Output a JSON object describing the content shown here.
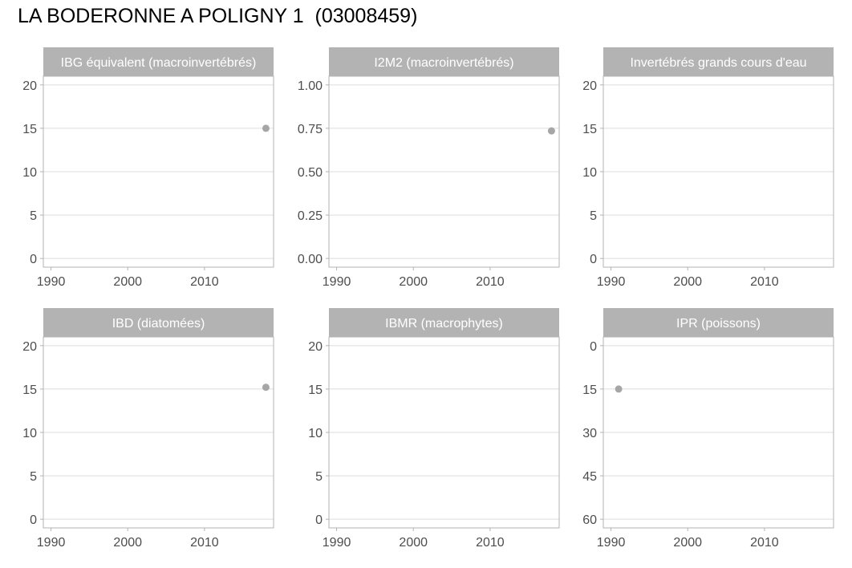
{
  "title": "LA BODERONNE A POLIGNY 1  (03008459)",
  "colors": {
    "strip_background": "#b3b3b3",
    "strip_text": "#ffffff",
    "panel_border": "#b3b3b3",
    "grid": "#dedede",
    "point": "#a6a6a6",
    "tick_text": "#4d4d4d"
  },
  "chart_data": [
    {
      "type": "scatter",
      "title": "IBG équivalent (macroinvertébrés)",
      "xlim": [
        1989,
        2019
      ],
      "ylim": [
        -1,
        21
      ],
      "y_reversed": false,
      "x_ticks": [
        1990,
        2000,
        2010
      ],
      "y_ticks": [
        0,
        5,
        10,
        15,
        20
      ],
      "y_tick_labels": [
        "0",
        "5",
        "10",
        "15",
        "20"
      ],
      "grid": true,
      "points": [
        {
          "x": 2018,
          "y": 15
        }
      ]
    },
    {
      "type": "scatter",
      "title": "I2M2 (macroinvertébrés)",
      "xlim": [
        1989,
        2019
      ],
      "ylim": [
        -0.05,
        1.05
      ],
      "y_reversed": false,
      "x_ticks": [
        1990,
        2000,
        2010
      ],
      "y_ticks": [
        0,
        0.25,
        0.5,
        0.75,
        1
      ],
      "y_tick_labels": [
        "0.00",
        "0.25",
        "0.50",
        "0.75",
        "1.00"
      ],
      "grid": true,
      "points": [
        {
          "x": 2018,
          "y": 0.735
        }
      ]
    },
    {
      "type": "scatter",
      "title": "Invertébrés grands cours d'eau",
      "xlim": [
        1989,
        2019
      ],
      "ylim": [
        -1,
        21
      ],
      "y_reversed": false,
      "x_ticks": [
        1990,
        2000,
        2010
      ],
      "y_ticks": [
        0,
        5,
        10,
        15,
        20
      ],
      "y_tick_labels": [
        "0",
        "5",
        "10",
        "15",
        "20"
      ],
      "grid": true,
      "points": []
    },
    {
      "type": "scatter",
      "title": "IBD (diatomées)",
      "xlim": [
        1989,
        2019
      ],
      "ylim": [
        -1,
        21
      ],
      "y_reversed": false,
      "x_ticks": [
        1990,
        2000,
        2010
      ],
      "y_ticks": [
        0,
        5,
        10,
        15,
        20
      ],
      "y_tick_labels": [
        "0",
        "5",
        "10",
        "15",
        "20"
      ],
      "grid": true,
      "points": [
        {
          "x": 2018,
          "y": 15.2
        }
      ]
    },
    {
      "type": "scatter",
      "title": "IBMR (macrophytes)",
      "xlim": [
        1989,
        2019
      ],
      "ylim": [
        -1,
        21
      ],
      "y_reversed": false,
      "x_ticks": [
        1990,
        2000,
        2010
      ],
      "y_ticks": [
        0,
        5,
        10,
        15,
        20
      ],
      "y_tick_labels": [
        "0",
        "5",
        "10",
        "15",
        "20"
      ],
      "grid": true,
      "points": []
    },
    {
      "type": "scatter",
      "title": "IPR (poissons)",
      "xlim": [
        1989,
        2019
      ],
      "ylim": [
        -3,
        63
      ],
      "y_reversed": true,
      "x_ticks": [
        1990,
        2000,
        2010
      ],
      "y_ticks": [
        0,
        15,
        30,
        45,
        60
      ],
      "y_tick_labels": [
        "0",
        "15",
        "30",
        "45",
        "60"
      ],
      "grid": true,
      "points": [
        {
          "x": 1991,
          "y": 15
        }
      ]
    }
  ]
}
